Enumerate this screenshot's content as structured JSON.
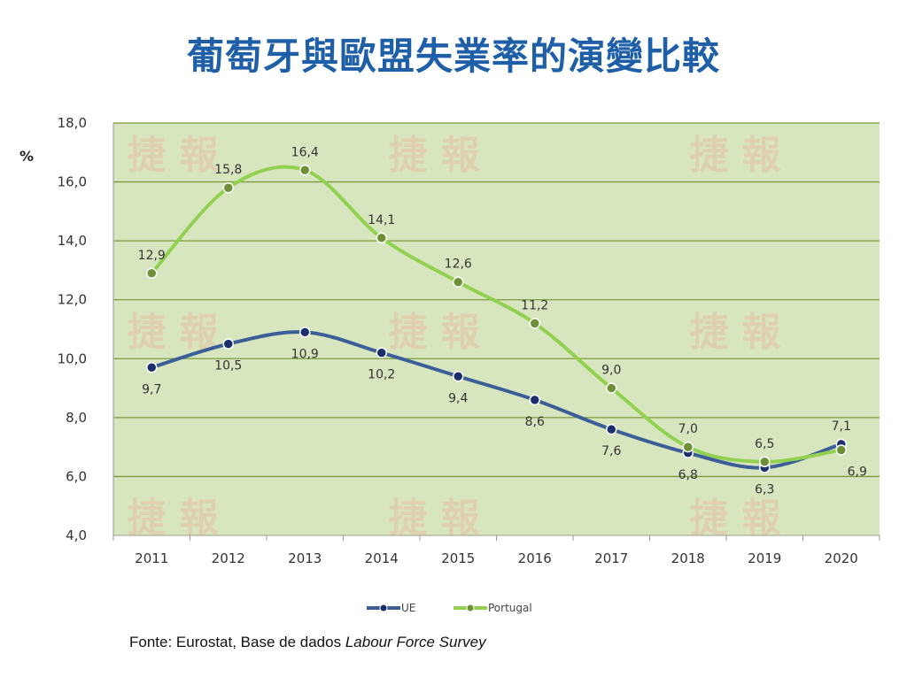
{
  "title": "葡萄牙與歐盟失業率的演變比較",
  "source": {
    "prefix": "Fonte: Eurostat, Base de dados ",
    "italic": "Labour Force Survey"
  },
  "watermark": "捷 報",
  "colors": {
    "plot_bg": "#d8e6bf",
    "grid": "#7a9a3c",
    "ue_line": "#3c5e98",
    "ue_marker": "#1a2f6b",
    "pt_line": "#92d050",
    "pt_marker": "#6e8f35",
    "title": "#1f5fa8"
  },
  "chart_data": {
    "type": "line",
    "ylabel": "%",
    "xlabel": "",
    "ylim": [
      4.0,
      18.0
    ],
    "yticks": [
      "4,0",
      "6,0",
      "8,0",
      "10,0",
      "12,0",
      "14,0",
      "16,0",
      "18,0"
    ],
    "categories": [
      "2011",
      "2012",
      "2013",
      "2014",
      "2015",
      "2016",
      "2017",
      "2018",
      "2019",
      "2020"
    ],
    "legend_position": "bottom",
    "grid": true,
    "series": [
      {
        "name": "UE",
        "values": [
          9.7,
          10.5,
          10.9,
          10.2,
          9.4,
          8.6,
          7.6,
          6.8,
          6.3,
          7.1
        ],
        "labels": [
          "9,7",
          "10,5",
          "10,9",
          "10,2",
          "9,4",
          "8,6",
          "7,6",
          "6,8",
          "6,3",
          "7,1"
        ]
      },
      {
        "name": "Portugal",
        "values": [
          12.9,
          15.8,
          16.4,
          14.1,
          12.6,
          11.2,
          9.0,
          7.0,
          6.5,
          6.9
        ],
        "labels": [
          "12,9",
          "15,8",
          "16,4",
          "14,1",
          "12,6",
          "11,2",
          "9,0",
          "7,0",
          "6,5",
          "6,9"
        ]
      }
    ]
  }
}
